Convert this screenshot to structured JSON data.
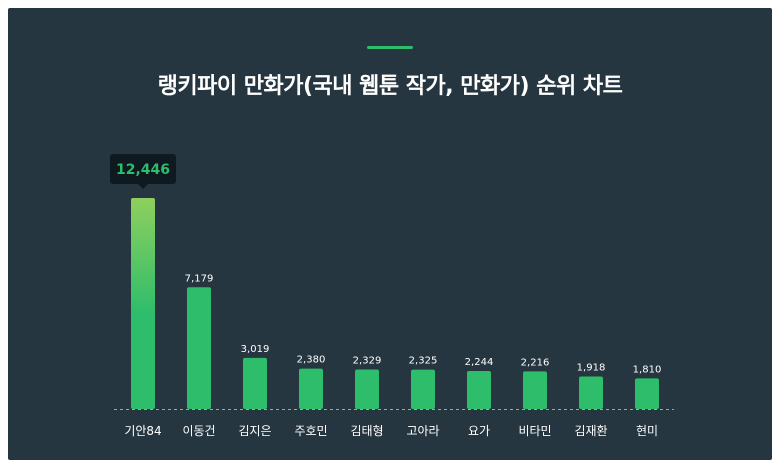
{
  "title": "랭키파이 만화가(국내 웹툰 작가, 만화가) 순위 차트",
  "colors": {
    "background": "#263640",
    "accent": "#2ebd6b",
    "bar": "#2ebd6b",
    "bar_top_highlight": "#8fcf5e",
    "highlight_label": "#2ebd6b",
    "tooltip_bg": "#0f1a20"
  },
  "chart_data": {
    "type": "bar",
    "title": "랭키파이 만화가(국내 웹툰 작가, 만화가) 순위 차트",
    "categories": [
      "기안84",
      "이동건",
      "김지은",
      "주호민",
      "김태형",
      "고아라",
      "요가",
      "비타민",
      "김재환",
      "현미"
    ],
    "values": [
      12446,
      7179,
      3019,
      2380,
      2329,
      2325,
      2244,
      2216,
      1918,
      1810
    ],
    "value_labels": [
      "12,446",
      "7,179",
      "3,019",
      "2,380",
      "2,329",
      "2,325",
      "2,244",
      "2,216",
      "1,918",
      "1,810"
    ],
    "highlighted_index": 0,
    "xlabel": "",
    "ylabel": "",
    "ylim": [
      0,
      12446
    ],
    "grid": false,
    "legend": "none"
  }
}
